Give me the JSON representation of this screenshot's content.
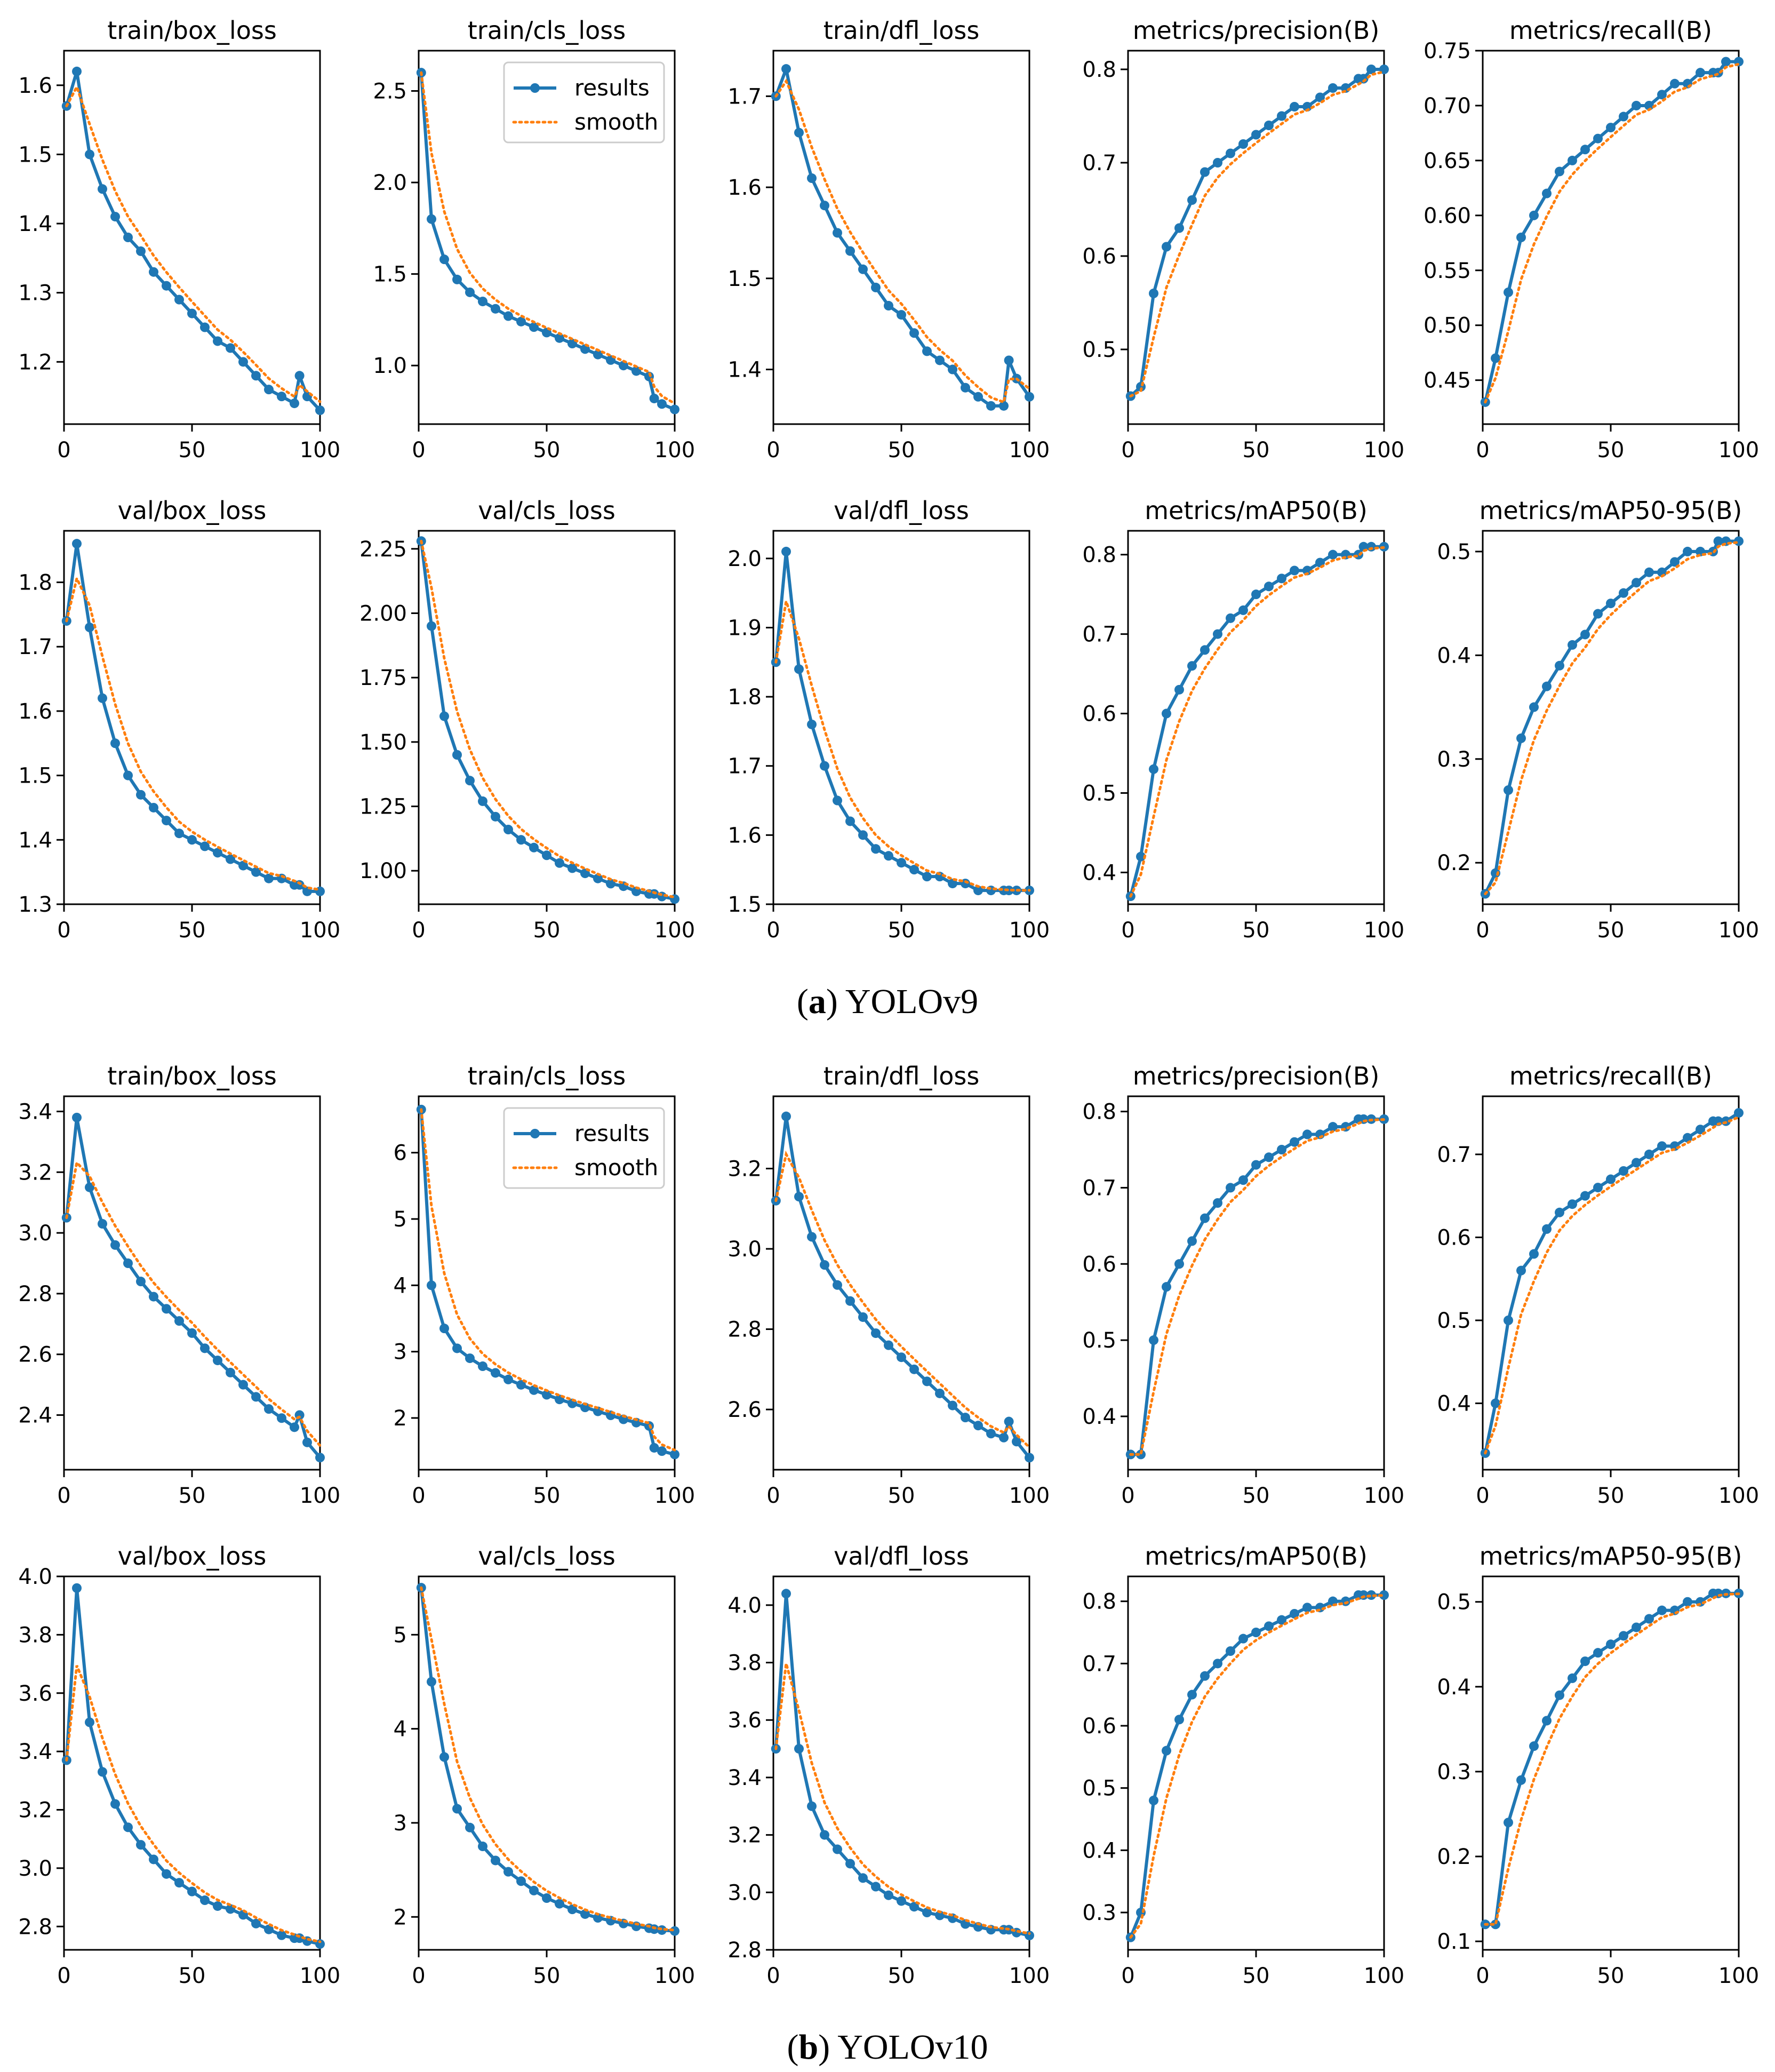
{
  "captions": {
    "a": {
      "label": "a",
      "text": "YOLOv9"
    },
    "b": {
      "label": "b",
      "text": "YOLOv10"
    }
  },
  "legend": {
    "results": "results",
    "smooth": "smooth"
  },
  "colors": {
    "results": "#1f77b4",
    "smooth": "#ff7f0e"
  },
  "x_values": [
    1,
    5,
    10,
    15,
    20,
    25,
    30,
    35,
    40,
    45,
    50,
    55,
    60,
    65,
    70,
    75,
    80,
    85,
    90,
    92,
    95,
    100
  ],
  "chart_data": [
    {
      "type": "line",
      "title": "train/box_loss",
      "group": "a",
      "legend": false,
      "xlim": [
        0,
        100
      ],
      "ylim": [
        1.11,
        1.65
      ],
      "xticks": [
        0,
        50,
        100
      ],
      "yticks": [
        1.2,
        1.3,
        1.4,
        1.5,
        1.6
      ],
      "ytick_labels": [
        "1.2",
        "1.3",
        "1.4",
        "1.5",
        "1.6"
      ],
      "results": [
        1.57,
        1.62,
        1.5,
        1.45,
        1.41,
        1.38,
        1.36,
        1.33,
        1.31,
        1.29,
        1.27,
        1.25,
        1.23,
        1.22,
        1.2,
        1.18,
        1.16,
        1.15,
        1.14,
        1.18,
        1.15,
        1.13
      ]
    },
    {
      "type": "line",
      "title": "train/cls_loss",
      "group": "a",
      "legend": true,
      "xlim": [
        0,
        100
      ],
      "ylim": [
        0.68,
        2.72
      ],
      "xticks": [
        0,
        50,
        100
      ],
      "yticks": [
        1.0,
        1.5,
        2.0,
        2.5
      ],
      "ytick_labels": [
        "1.0",
        "1.5",
        "2.0",
        "2.5"
      ],
      "results": [
        2.6,
        1.8,
        1.58,
        1.47,
        1.4,
        1.35,
        1.31,
        1.27,
        1.24,
        1.21,
        1.18,
        1.15,
        1.12,
        1.09,
        1.06,
        1.03,
        1.0,
        0.97,
        0.94,
        0.82,
        0.79,
        0.76
      ]
    },
    {
      "type": "line",
      "title": "train/dfl_loss",
      "group": "a",
      "legend": false,
      "xlim": [
        0,
        100
      ],
      "ylim": [
        1.34,
        1.75
      ],
      "xticks": [
        0,
        50,
        100
      ],
      "yticks": [
        1.4,
        1.5,
        1.6,
        1.7
      ],
      "ytick_labels": [
        "1.4",
        "1.5",
        "1.6",
        "1.7"
      ],
      "results": [
        1.7,
        1.73,
        1.66,
        1.61,
        1.58,
        1.55,
        1.53,
        1.51,
        1.49,
        1.47,
        1.46,
        1.44,
        1.42,
        1.41,
        1.4,
        1.38,
        1.37,
        1.36,
        1.36,
        1.41,
        1.39,
        1.37
      ]
    },
    {
      "type": "line",
      "title": "metrics/precision(B)",
      "group": "a",
      "legend": false,
      "xlim": [
        0,
        100
      ],
      "ylim": [
        0.42,
        0.82
      ],
      "xticks": [
        0,
        50,
        100
      ],
      "yticks": [
        0.5,
        0.6,
        0.7,
        0.8
      ],
      "ytick_labels": [
        "0.5",
        "0.6",
        "0.7",
        "0.8"
      ],
      "results": [
        0.45,
        0.46,
        0.56,
        0.61,
        0.63,
        0.66,
        0.69,
        0.7,
        0.71,
        0.72,
        0.73,
        0.74,
        0.75,
        0.76,
        0.76,
        0.77,
        0.78,
        0.78,
        0.79,
        0.79,
        0.8,
        0.8
      ]
    },
    {
      "type": "line",
      "title": "metrics/recall(B)",
      "group": "a",
      "legend": false,
      "xlim": [
        0,
        100
      ],
      "ylim": [
        0.41,
        0.75
      ],
      "xticks": [
        0,
        50,
        100
      ],
      "yticks": [
        0.45,
        0.5,
        0.55,
        0.6,
        0.65,
        0.7,
        0.75
      ],
      "ytick_labels": [
        "0.45",
        "0.50",
        "0.55",
        "0.60",
        "0.65",
        "0.70",
        "0.75"
      ],
      "results": [
        0.43,
        0.47,
        0.53,
        0.58,
        0.6,
        0.62,
        0.64,
        0.65,
        0.66,
        0.67,
        0.68,
        0.69,
        0.7,
        0.7,
        0.71,
        0.72,
        0.72,
        0.73,
        0.73,
        0.73,
        0.74,
        0.74
      ]
    },
    {
      "type": "line",
      "title": "val/box_loss",
      "group": "a",
      "legend": false,
      "xlim": [
        0,
        100
      ],
      "ylim": [
        1.3,
        1.88
      ],
      "xticks": [
        0,
        50,
        100
      ],
      "yticks": [
        1.3,
        1.4,
        1.5,
        1.6,
        1.7,
        1.8
      ],
      "ytick_labels": [
        "1.3",
        "1.4",
        "1.5",
        "1.6",
        "1.7",
        "1.8"
      ],
      "results": [
        1.74,
        1.86,
        1.73,
        1.62,
        1.55,
        1.5,
        1.47,
        1.45,
        1.43,
        1.41,
        1.4,
        1.39,
        1.38,
        1.37,
        1.36,
        1.35,
        1.34,
        1.34,
        1.33,
        1.33,
        1.32,
        1.32
      ]
    },
    {
      "type": "line",
      "title": "val/cls_loss",
      "group": "a",
      "legend": false,
      "xlim": [
        0,
        100
      ],
      "ylim": [
        0.87,
        2.32
      ],
      "xticks": [
        0,
        50,
        100
      ],
      "yticks": [
        1.0,
        1.25,
        1.5,
        1.75,
        2.0,
        2.25
      ],
      "ytick_labels": [
        "1.00",
        "1.25",
        "1.50",
        "1.75",
        "2.00",
        "2.25"
      ],
      "results": [
        2.28,
        1.95,
        1.6,
        1.45,
        1.35,
        1.27,
        1.21,
        1.16,
        1.12,
        1.09,
        1.06,
        1.03,
        1.01,
        0.99,
        0.97,
        0.95,
        0.94,
        0.92,
        0.91,
        0.91,
        0.9,
        0.89
      ]
    },
    {
      "type": "line",
      "title": "val/dfl_loss",
      "group": "a",
      "legend": false,
      "xlim": [
        0,
        100
      ],
      "ylim": [
        1.5,
        2.04
      ],
      "xticks": [
        0,
        50,
        100
      ],
      "yticks": [
        1.5,
        1.6,
        1.7,
        1.8,
        1.9,
        2.0
      ],
      "ytick_labels": [
        "1.5",
        "1.6",
        "1.7",
        "1.8",
        "1.9",
        "2.0"
      ],
      "results": [
        1.85,
        2.01,
        1.84,
        1.76,
        1.7,
        1.65,
        1.62,
        1.6,
        1.58,
        1.57,
        1.56,
        1.55,
        1.54,
        1.54,
        1.53,
        1.53,
        1.52,
        1.52,
        1.52,
        1.52,
        1.52,
        1.52
      ]
    },
    {
      "type": "line",
      "title": "metrics/mAP50(B)",
      "group": "a",
      "legend": false,
      "xlim": [
        0,
        100
      ],
      "ylim": [
        0.36,
        0.83
      ],
      "xticks": [
        0,
        50,
        100
      ],
      "yticks": [
        0.4,
        0.5,
        0.6,
        0.7,
        0.8
      ],
      "ytick_labels": [
        "0.4",
        "0.5",
        "0.6",
        "0.7",
        "0.8"
      ],
      "results": [
        0.37,
        0.42,
        0.53,
        0.6,
        0.63,
        0.66,
        0.68,
        0.7,
        0.72,
        0.73,
        0.75,
        0.76,
        0.77,
        0.78,
        0.78,
        0.79,
        0.8,
        0.8,
        0.8,
        0.81,
        0.81,
        0.81
      ]
    },
    {
      "type": "line",
      "title": "metrics/mAP50-95(B)",
      "group": "a",
      "legend": false,
      "xlim": [
        0,
        100
      ],
      "ylim": [
        0.16,
        0.52
      ],
      "xticks": [
        0,
        50,
        100
      ],
      "yticks": [
        0.2,
        0.3,
        0.4,
        0.5
      ],
      "ytick_labels": [
        "0.2",
        "0.3",
        "0.4",
        "0.5"
      ],
      "results": [
        0.17,
        0.19,
        0.27,
        0.32,
        0.35,
        0.37,
        0.39,
        0.41,
        0.42,
        0.44,
        0.45,
        0.46,
        0.47,
        0.48,
        0.48,
        0.49,
        0.5,
        0.5,
        0.5,
        0.51,
        0.51,
        0.51
      ]
    },
    {
      "type": "line",
      "title": "train/box_loss",
      "group": "b",
      "legend": false,
      "xlim": [
        0,
        100
      ],
      "ylim": [
        2.22,
        3.45
      ],
      "xticks": [
        0,
        50,
        100
      ],
      "yticks": [
        2.4,
        2.6,
        2.8,
        3.0,
        3.2,
        3.4
      ],
      "ytick_labels": [
        "2.4",
        "2.6",
        "2.8",
        "3.0",
        "3.2",
        "3.4"
      ],
      "results": [
        3.05,
        3.38,
        3.15,
        3.03,
        2.96,
        2.9,
        2.84,
        2.79,
        2.75,
        2.71,
        2.67,
        2.62,
        2.58,
        2.54,
        2.5,
        2.46,
        2.42,
        2.39,
        2.36,
        2.4,
        2.31,
        2.26
      ]
    },
    {
      "type": "line",
      "title": "train/cls_loss",
      "group": "b",
      "legend": true,
      "xlim": [
        0,
        100
      ],
      "ylim": [
        1.22,
        6.85
      ],
      "xticks": [
        0,
        50,
        100
      ],
      "yticks": [
        2,
        3,
        4,
        5,
        6
      ],
      "ytick_labels": [
        "2",
        "3",
        "4",
        "5",
        "6"
      ],
      "results": [
        6.65,
        4.0,
        3.35,
        3.05,
        2.9,
        2.78,
        2.68,
        2.58,
        2.5,
        2.42,
        2.35,
        2.28,
        2.22,
        2.16,
        2.1,
        2.04,
        1.98,
        1.93,
        1.88,
        1.55,
        1.5,
        1.45
      ]
    },
    {
      "type": "line",
      "title": "train/dfl_loss",
      "group": "b",
      "legend": false,
      "xlim": [
        0,
        100
      ],
      "ylim": [
        2.45,
        3.38
      ],
      "xticks": [
        0,
        50,
        100
      ],
      "yticks": [
        2.6,
        2.8,
        3.0,
        3.2
      ],
      "ytick_labels": [
        "2.6",
        "2.8",
        "3.0",
        "3.2"
      ],
      "results": [
        3.12,
        3.33,
        3.13,
        3.03,
        2.96,
        2.91,
        2.87,
        2.83,
        2.79,
        2.76,
        2.73,
        2.7,
        2.67,
        2.64,
        2.61,
        2.58,
        2.56,
        2.54,
        2.53,
        2.57,
        2.52,
        2.48
      ]
    },
    {
      "type": "line",
      "title": "metrics/precision(B)",
      "group": "b",
      "legend": false,
      "xlim": [
        0,
        100
      ],
      "ylim": [
        0.33,
        0.82
      ],
      "xticks": [
        0,
        50,
        100
      ],
      "yticks": [
        0.4,
        0.5,
        0.6,
        0.7,
        0.8
      ],
      "ytick_labels": [
        "0.4",
        "0.5",
        "0.6",
        "0.7",
        "0.8"
      ],
      "results": [
        0.35,
        0.35,
        0.5,
        0.57,
        0.6,
        0.63,
        0.66,
        0.68,
        0.7,
        0.71,
        0.73,
        0.74,
        0.75,
        0.76,
        0.77,
        0.77,
        0.78,
        0.78,
        0.79,
        0.79,
        0.79,
        0.79
      ]
    },
    {
      "type": "line",
      "title": "metrics/recall(B)",
      "group": "b",
      "legend": false,
      "xlim": [
        0,
        100
      ],
      "ylim": [
        0.32,
        0.77
      ],
      "xticks": [
        0,
        50,
        100
      ],
      "yticks": [
        0.4,
        0.5,
        0.6,
        0.7
      ],
      "ytick_labels": [
        "0.4",
        "0.5",
        "0.6",
        "0.7"
      ],
      "results": [
        0.34,
        0.4,
        0.5,
        0.56,
        0.58,
        0.61,
        0.63,
        0.64,
        0.65,
        0.66,
        0.67,
        0.68,
        0.69,
        0.7,
        0.71,
        0.71,
        0.72,
        0.73,
        0.74,
        0.74,
        0.74,
        0.75
      ]
    },
    {
      "type": "line",
      "title": "val/box_loss",
      "group": "b",
      "legend": false,
      "xlim": [
        0,
        100
      ],
      "ylim": [
        2.72,
        4.0
      ],
      "xticks": [
        0,
        50,
        100
      ],
      "yticks": [
        2.8,
        3.0,
        3.2,
        3.4,
        3.6,
        3.8,
        4.0
      ],
      "ytick_labels": [
        "2.8",
        "3.0",
        "3.2",
        "3.4",
        "3.6",
        "3.8",
        "4.0"
      ],
      "results": [
        3.37,
        3.96,
        3.5,
        3.33,
        3.22,
        3.14,
        3.08,
        3.03,
        2.98,
        2.95,
        2.92,
        2.89,
        2.87,
        2.86,
        2.84,
        2.81,
        2.79,
        2.77,
        2.76,
        2.76,
        2.75,
        2.74
      ]
    },
    {
      "type": "line",
      "title": "val/cls_loss",
      "group": "b",
      "legend": false,
      "xlim": [
        0,
        100
      ],
      "ylim": [
        1.65,
        5.62
      ],
      "xticks": [
        0,
        50,
        100
      ],
      "yticks": [
        2,
        3,
        4,
        5
      ],
      "ytick_labels": [
        "2",
        "3",
        "4",
        "5"
      ],
      "results": [
        5.5,
        4.5,
        3.7,
        3.15,
        2.95,
        2.75,
        2.6,
        2.48,
        2.38,
        2.28,
        2.2,
        2.14,
        2.08,
        2.03,
        1.99,
        1.96,
        1.93,
        1.9,
        1.88,
        1.87,
        1.86,
        1.85
      ]
    },
    {
      "type": "line",
      "title": "val/dfl_loss",
      "group": "b",
      "legend": false,
      "xlim": [
        0,
        100
      ],
      "ylim": [
        2.8,
        4.1
      ],
      "xticks": [
        0,
        50,
        100
      ],
      "yticks": [
        2.8,
        3.0,
        3.2,
        3.4,
        3.6,
        3.8,
        4.0
      ],
      "ytick_labels": [
        "2.8",
        "3.0",
        "3.2",
        "3.4",
        "3.6",
        "3.8",
        "4.0"
      ],
      "results": [
        3.5,
        4.04,
        3.5,
        3.3,
        3.2,
        3.15,
        3.1,
        3.05,
        3.02,
        2.99,
        2.97,
        2.95,
        2.93,
        2.92,
        2.91,
        2.89,
        2.88,
        2.87,
        2.87,
        2.87,
        2.86,
        2.85
      ]
    },
    {
      "type": "line",
      "title": "metrics/mAP50(B)",
      "group": "b",
      "legend": false,
      "xlim": [
        0,
        100
      ],
      "ylim": [
        0.24,
        0.84
      ],
      "xticks": [
        0,
        50,
        100
      ],
      "yticks": [
        0.3,
        0.4,
        0.5,
        0.6,
        0.7,
        0.8
      ],
      "ytick_labels": [
        "0.3",
        "0.4",
        "0.5",
        "0.6",
        "0.7",
        "0.8"
      ],
      "results": [
        0.26,
        0.3,
        0.48,
        0.56,
        0.61,
        0.65,
        0.68,
        0.7,
        0.72,
        0.74,
        0.75,
        0.76,
        0.77,
        0.78,
        0.79,
        0.79,
        0.8,
        0.8,
        0.81,
        0.81,
        0.81,
        0.81
      ]
    },
    {
      "type": "line",
      "title": "metrics/mAP50-95(B)",
      "group": "b",
      "legend": false,
      "xlim": [
        0,
        100
      ],
      "ylim": [
        0.09,
        0.53
      ],
      "xticks": [
        0,
        50,
        100
      ],
      "yticks": [
        0.1,
        0.2,
        0.3,
        0.4,
        0.5
      ],
      "ytick_labels": [
        "0.1",
        "0.2",
        "0.3",
        "0.4",
        "0.5"
      ],
      "results": [
        0.12,
        0.12,
        0.24,
        0.29,
        0.33,
        0.36,
        0.39,
        0.41,
        0.43,
        0.44,
        0.45,
        0.46,
        0.47,
        0.48,
        0.49,
        0.49,
        0.5,
        0.5,
        0.51,
        0.51,
        0.51,
        0.51
      ]
    }
  ]
}
